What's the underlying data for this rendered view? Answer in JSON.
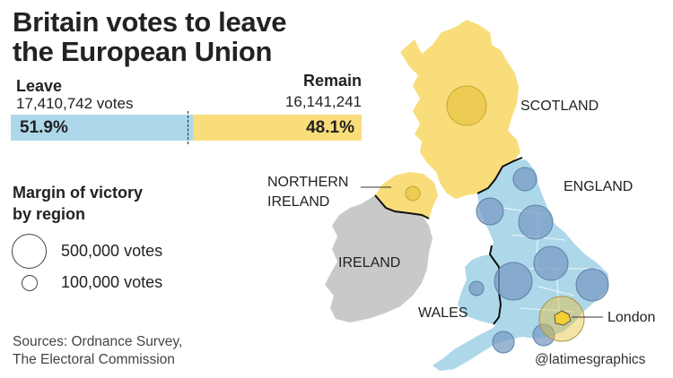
{
  "title": {
    "line1": "Britain votes to leave",
    "line2": "the European Union"
  },
  "results": {
    "leave": {
      "label": "Leave",
      "votes": "17,410,742 votes",
      "pct_label": "51.9%",
      "pct": 51.9,
      "color": "#add8ea"
    },
    "remain": {
      "label": "Remain",
      "votes": "16,141,241",
      "pct_label": "48.1%",
      "pct": 48.1,
      "color": "#f8dd7a"
    }
  },
  "legend": {
    "title_line1": "Margin of victory",
    "title_line2": "by region",
    "large_label": "500,000 votes",
    "small_label": "100,000 votes"
  },
  "map_labels": {
    "scotland": "SCOTLAND",
    "england": "ENGLAND",
    "northern_ireland_line1": "NORTHERN",
    "northern_ireland_line2": "IRELAND",
    "ireland": "IRELAND",
    "wales": "WALES",
    "london": "London"
  },
  "sources": {
    "line1": "Sources: Ordnance Survey,",
    "line2": "The Electoral Commission"
  },
  "credit": "@latimesgraphics",
  "colors": {
    "leave_fill": "#add8ea",
    "remain_fill": "#f8dd7a",
    "ireland_fill": "#c9c9c9",
    "leave_bubble": "#7a9cc4",
    "remain_bubble": "#e6c23a"
  }
}
